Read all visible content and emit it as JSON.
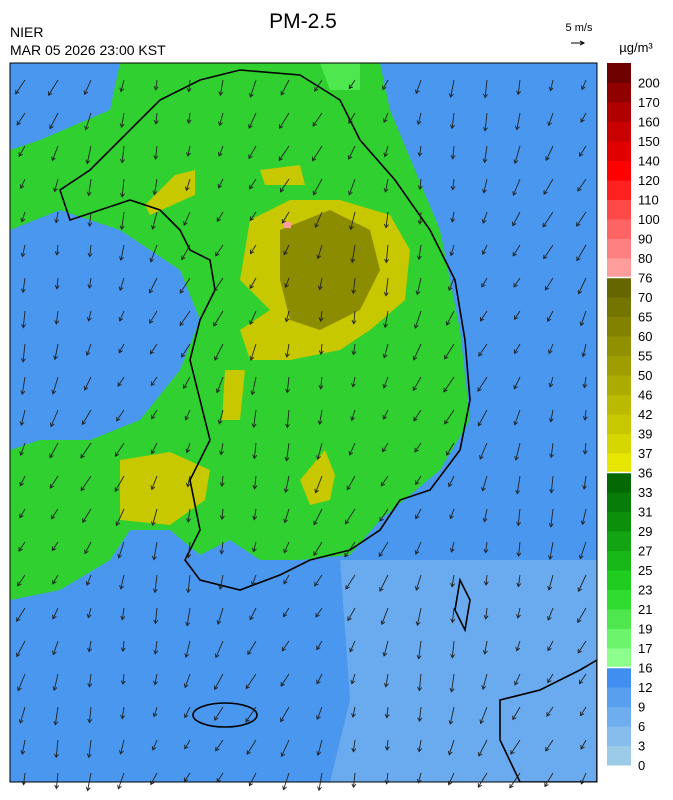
{
  "title": "PM-2.5",
  "source": "NIER",
  "timestamp": "MAR 05 2026 23:00 KST",
  "wind_reference": "5 m/s",
  "colorbar": {
    "unit": "µg/m³",
    "levels": [
      0,
      3,
      6,
      9,
      12,
      16,
      17,
      19,
      21,
      23,
      25,
      27,
      29,
      31,
      33,
      36,
      37,
      39,
      42,
      46,
      50,
      55,
      60,
      65,
      70,
      76,
      80,
      90,
      100,
      110,
      120,
      140,
      150,
      160,
      170,
      200
    ],
    "colors": [
      "#9ccbe8",
      "#86bdec",
      "#6eaeee",
      "#589fef",
      "#3f8ef0",
      "#8cff8c",
      "#6cf56c",
      "#4ee84e",
      "#2fdc2f",
      "#1fcc1f",
      "#18b818",
      "#12a412",
      "#0c900c",
      "#087c08",
      "#046804",
      "#e6e600",
      "#d6d600",
      "#c8c800",
      "#baba00",
      "#acac00",
      "#9e9e00",
      "#909000",
      "#828200",
      "#747400",
      "#666600",
      "#ff9c9c",
      "#ff8080",
      "#ff6464",
      "#ff4848",
      "#ff2020",
      "#ff0000",
      "#e00000",
      "#c80000",
      "#b00000",
      "#900000",
      "#6e0000"
    ]
  }
}
